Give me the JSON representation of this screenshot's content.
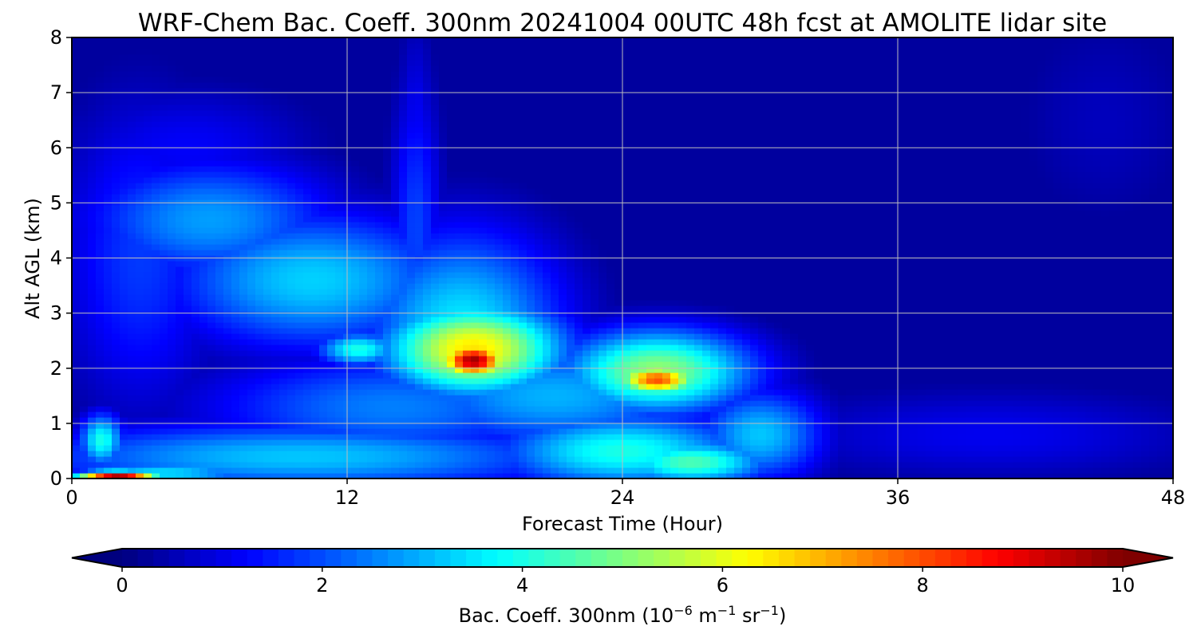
{
  "chart_data": {
    "type": "heatmap",
    "title": "WRF-Chem Bac. Coeff. 300nm  20241004 00UTC 48h fcst at AMOLITE lidar site",
    "xlabel": "Forecast Time (Hour)",
    "ylabel": "Alt AGL (km)",
    "xlim": [
      0,
      48
    ],
    "ylim": [
      0,
      8
    ],
    "xticks": [
      "0",
      "12",
      "24",
      "36",
      "48"
    ],
    "yticks": [
      "0",
      "1",
      "2",
      "3",
      "4",
      "5",
      "6",
      "7",
      "8"
    ],
    "grid": true,
    "colormap": "jet",
    "colorbar": {
      "label": "Bac. Coeff. 300nm  (10",
      "label_exp1": "−6",
      "label_mid": " m",
      "label_exp2": "−1",
      "label_mid2": " sr",
      "label_exp3": "−1",
      "label_end": ")",
      "range": [
        0,
        10
      ],
      "ticks": [
        "0",
        "2",
        "4",
        "6",
        "8",
        "10"
      ],
      "extend": "both",
      "placement": "bottom"
    },
    "background_value": 0.3,
    "features": [
      {
        "t": 17.5,
        "z": 2.15,
        "v": 9.7,
        "st": 1.1,
        "sz": 0.23
      },
      {
        "t": 17.5,
        "z": 2.35,
        "v": 6.5,
        "st": 2.8,
        "sz": 0.6
      },
      {
        "t": 17.0,
        "z": 2.7,
        "v": 3.6,
        "st": 3.2,
        "sz": 1.3
      },
      {
        "t": 25.5,
        "z": 1.8,
        "v": 8.0,
        "st": 1.3,
        "sz": 0.2
      },
      {
        "t": 25.5,
        "z": 1.95,
        "v": 5.2,
        "st": 3.0,
        "sz": 0.55
      },
      {
        "t": 12.5,
        "z": 2.35,
        "v": 4.0,
        "st": 1.3,
        "sz": 0.22
      },
      {
        "t": 10.5,
        "z": 3.6,
        "v": 3.3,
        "st": 4.5,
        "sz": 0.9
      },
      {
        "t": 6.0,
        "z": 4.7,
        "v": 2.8,
        "st": 4.0,
        "sz": 0.8
      },
      {
        "t": 3.0,
        "z": 4.0,
        "v": 1.8,
        "st": 2.5,
        "sz": 2.0
      },
      {
        "t": 15.0,
        "z": 4.5,
        "v": 1.9,
        "st": 0.8,
        "sz": 2.0
      },
      {
        "t": 15.0,
        "z": 6.2,
        "v": 1.2,
        "st": 0.6,
        "sz": 1.5
      },
      {
        "t": 21.0,
        "z": 1.5,
        "v": 3.0,
        "st": 5.0,
        "sz": 0.7
      },
      {
        "t": 14.0,
        "z": 1.3,
        "v": 2.5,
        "st": 6.0,
        "sz": 0.7
      },
      {
        "t": 10.0,
        "z": 0.4,
        "v": 3.2,
        "st": 9.0,
        "sz": 0.45
      },
      {
        "t": 24.0,
        "z": 0.5,
        "v": 4.0,
        "st": 4.0,
        "sz": 0.5
      },
      {
        "t": 27.0,
        "z": 0.3,
        "v": 4.5,
        "st": 2.5,
        "sz": 0.3
      },
      {
        "t": 30.0,
        "z": 0.8,
        "v": 3.2,
        "st": 2.0,
        "sz": 0.6
      },
      {
        "t": 2.0,
        "z": 0.05,
        "v": 9.5,
        "st": 1.3,
        "sz": 0.07
      },
      {
        "t": 1.3,
        "z": 0.7,
        "v": 4.0,
        "st": 0.7,
        "sz": 0.35
      },
      {
        "t": 4.0,
        "z": 0.1,
        "v": 3.5,
        "st": 3.0,
        "sz": 0.15
      },
      {
        "t": 40.0,
        "z": 0.8,
        "v": 1.1,
        "st": 7.0,
        "sz": 0.6
      },
      {
        "t": 45.0,
        "z": 6.5,
        "v": 0.6,
        "st": 3.0,
        "sz": 1.5
      },
      {
        "t": 5.0,
        "z": 6.0,
        "v": 1.2,
        "st": 4.0,
        "sz": 0.8
      }
    ],
    "colors": {
      "jet_stops": [
        "#00007f",
        "#0000ff",
        "#007fff",
        "#00ffff",
        "#7fff7f",
        "#ffff00",
        "#ff7f00",
        "#ff0000",
        "#7f0000"
      ]
    }
  }
}
